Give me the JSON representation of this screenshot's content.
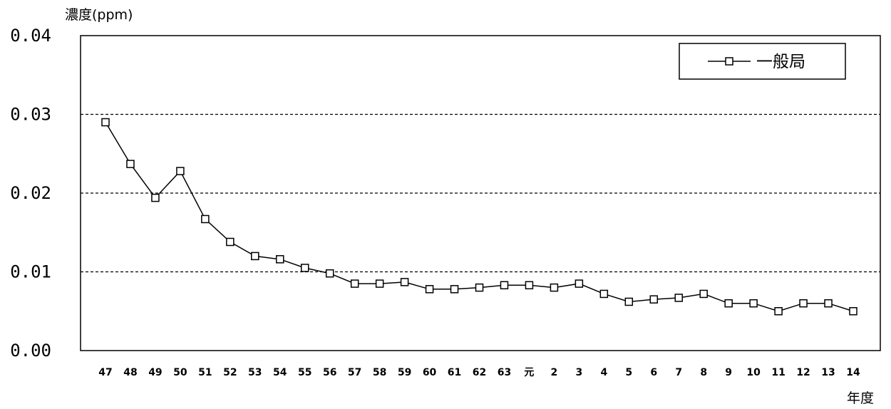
{
  "chart_data": {
    "type": "line",
    "title": "",
    "ylabel": "濃度(ppm)",
    "xlabel": "年度",
    "ylim": [
      0,
      0.04
    ],
    "yticks": [
      "0.00",
      "0.01",
      "0.02",
      "0.03",
      "0.04"
    ],
    "grid": "horizontal dashed",
    "legend_position": "top-right",
    "categories": [
      "47",
      "48",
      "49",
      "50",
      "51",
      "52",
      "53",
      "54",
      "55",
      "56",
      "57",
      "58",
      "59",
      "60",
      "61",
      "62",
      "63",
      "元",
      "2",
      "3",
      "4",
      "5",
      "6",
      "7",
      "8",
      "9",
      "10",
      "11",
      "12",
      "13",
      "14"
    ],
    "series": [
      {
        "name": "一般局",
        "marker": "hollow-square",
        "color": "#000000",
        "values": [
          0.029,
          0.0237,
          0.0194,
          0.0228,
          0.0167,
          0.0138,
          0.012,
          0.0116,
          0.0105,
          0.0098,
          0.0085,
          0.0085,
          0.0087,
          0.0078,
          0.0078,
          0.008,
          0.0083,
          0.0083,
          0.008,
          0.0085,
          0.0072,
          0.0062,
          0.0065,
          0.0067,
          0.0072,
          0.006,
          0.006,
          0.005,
          0.006,
          0.006,
          0.005
        ]
      }
    ]
  }
}
